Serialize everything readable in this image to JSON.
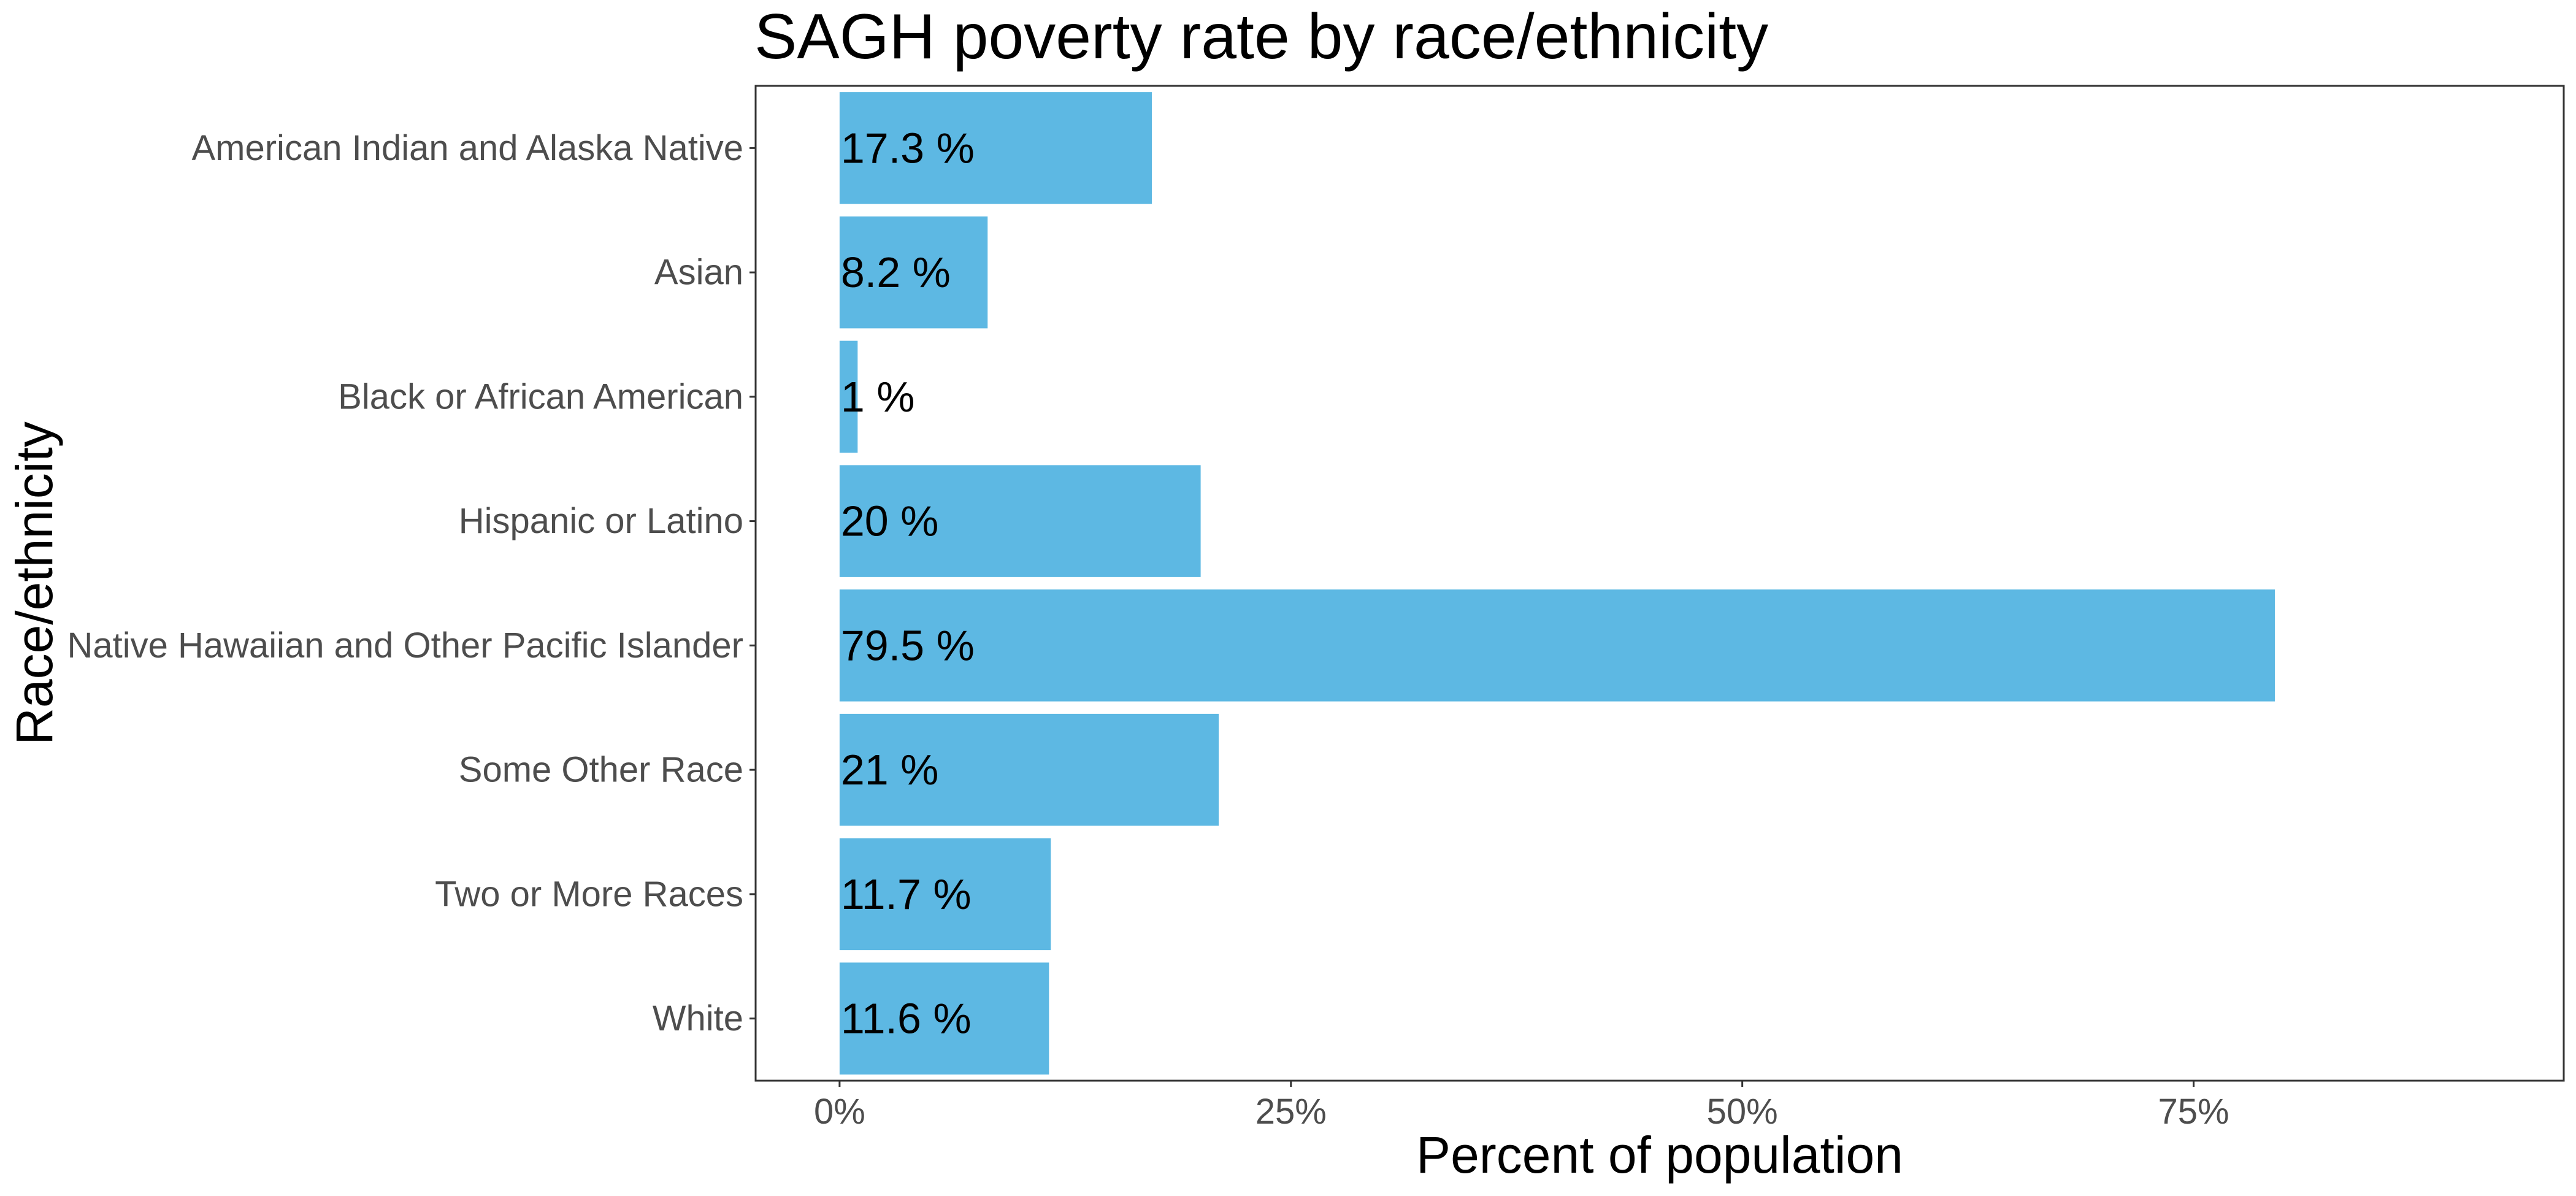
{
  "chart_data": {
    "type": "bar",
    "orientation": "horizontal",
    "title": "SAGH poverty rate by race/ethnicity",
    "xlabel": "Percent of population",
    "ylabel": "Race/ethnicity",
    "categories": [
      "American Indian and Alaska Native",
      "Asian",
      "Black or African American",
      "Hispanic or Latino",
      "Native Hawaiian and Other Pacific Islander",
      "Some Other Race",
      "Two or More Races",
      "White"
    ],
    "values": [
      17.3,
      8.2,
      1,
      20,
      79.5,
      21,
      11.7,
      11.6
    ],
    "data_labels": [
      "17.3 %",
      "8.2 %",
      "1 %",
      "20 %",
      "79.5 %",
      "21 %",
      "11.7 %",
      "11.6 %"
    ],
    "x_ticks": [
      0,
      25,
      50,
      75
    ],
    "x_tick_labels": [
      "0%",
      "25%",
      "50%",
      "75%"
    ],
    "xlim": [
      -4.65,
      95.5
    ],
    "bar_color": "#5DB8E3",
    "grid": false,
    "legend": "none"
  }
}
